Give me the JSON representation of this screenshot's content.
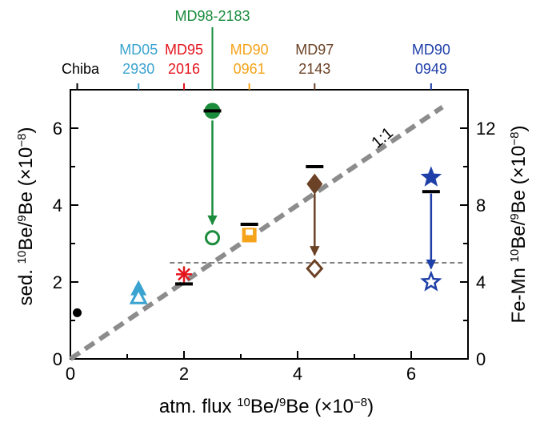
{
  "chart_data": {
    "type": "scatter",
    "x_axis": {
      "range": [
        0,
        7
      ],
      "ticks": [
        0,
        2,
        4,
        6
      ],
      "tick_labels": [
        "0",
        "2",
        "4",
        "6"
      ],
      "title": {
        "prefix": "atm. flux ",
        "ratio_num": "10",
        "ratio_num_el": "Be/",
        "ratio_den": "9",
        "ratio_den_el": "Be",
        "unit_open": " (×10",
        "unit_exp": "−8",
        "unit_close": ")"
      }
    },
    "y_axis_left": {
      "range": [
        0,
        7
      ],
      "ticks": [
        0,
        2,
        4,
        6
      ],
      "tick_labels": [
        "0",
        "2",
        "4",
        "6"
      ],
      "title": {
        "prefix": "sed. ",
        "ratio_num": "10",
        "ratio_num_el": "Be/",
        "ratio_den": "9",
        "ratio_den_el": "Be",
        "unit_open": " (×10",
        "unit_exp": "−8",
        "unit_close": ")"
      }
    },
    "y_axis_right": {
      "range": [
        0,
        14
      ],
      "ticks": [
        0,
        4,
        8,
        12
      ],
      "tick_labels": [
        "0",
        "4",
        "8",
        "12"
      ],
      "title": {
        "prefix": "Fe-Mn ",
        "ratio_num": "10",
        "ratio_num_el": "Be/",
        "ratio_den": "9",
        "ratio_den_el": "Be",
        "unit_open": " (×10",
        "unit_exp": "−8",
        "unit_close": ")"
      }
    },
    "one_to_one_label": "1:1",
    "reference_line_y": 2.5,
    "sites": [
      {
        "name": "Chiba",
        "line1": "Chiba",
        "line2": "",
        "x": 0.12,
        "color": "#000000"
      },
      {
        "name": "MD05 2930",
        "line1": "MD05",
        "line2": "2930",
        "x": 1.2,
        "color": "#3aa3d0"
      },
      {
        "name": "MD95 2016",
        "line1": "MD95",
        "line2": "2016",
        "x": 2.0,
        "color": "#e3141c"
      },
      {
        "name": "MD98-2183",
        "line1": "MD98-2183",
        "line2": "",
        "x": 2.5,
        "color": "#1a8c3c"
      },
      {
        "name": "MD90 0961",
        "line1": "MD90",
        "line2": "0961",
        "x": 3.15,
        "color": "#f5a31a"
      },
      {
        "name": "MD97 2143",
        "line1": "MD97",
        "line2": "2143",
        "x": 4.3,
        "color": "#6b4226"
      },
      {
        "name": "MD90 0949",
        "line1": "MD90",
        "line2": "0949",
        "x": 6.35,
        "color": "#1f3fa8"
      }
    ],
    "points": [
      {
        "site": "Chiba",
        "x": 0.12,
        "y": 1.2,
        "marker": "dot",
        "color": "#000000"
      },
      {
        "site": "MD05 2930",
        "x": 1.2,
        "y": 1.8,
        "marker": "triangle-filled",
        "color": "#3aa3d0"
      },
      {
        "site": "MD05 2930",
        "x": 1.2,
        "y": 1.62,
        "marker": "triangle-open",
        "color": "#3aa3d0"
      },
      {
        "site": "MD95 2016",
        "x": 2.0,
        "y": 2.2,
        "marker": "asterisk",
        "color": "#e3141c"
      },
      {
        "site": "MD98-2183",
        "x": 2.5,
        "y": 6.45,
        "marker": "circle-half",
        "color": "#1a8c3c"
      },
      {
        "site": "MD98-2183",
        "x": 2.5,
        "y": 3.15,
        "marker": "circle-open",
        "color": "#1a8c3c"
      },
      {
        "site": "MD90 0961",
        "x": 3.15,
        "y": 3.22,
        "marker": "square-half",
        "color": "#f5a31a"
      },
      {
        "site": "MD97 2143",
        "x": 4.3,
        "y": 4.55,
        "marker": "diamond-filled",
        "color": "#6b4226"
      },
      {
        "site": "MD97 2143",
        "x": 4.3,
        "y": 2.35,
        "marker": "diamond-open",
        "color": "#6b4226"
      },
      {
        "site": "MD90 0949",
        "x": 6.35,
        "y": 4.72,
        "marker": "star-filled",
        "color": "#1f3fa8"
      },
      {
        "site": "MD90 0949",
        "x": 6.35,
        "y": 2.0,
        "marker": "star-open",
        "color": "#1f3fa8"
      }
    ],
    "black_bars": [
      {
        "x": 2.0,
        "y": 1.95
      },
      {
        "x": 2.5,
        "y": 6.45
      },
      {
        "x": 3.15,
        "y": 3.5
      },
      {
        "x": 4.3,
        "y": 5.0
      },
      {
        "x": 6.35,
        "y": 4.35
      }
    ],
    "arrows": [
      {
        "x": 2.5,
        "from": 6.2,
        "to": 3.5,
        "color": "#1a8c3c"
      },
      {
        "x": 4.3,
        "from": 4.3,
        "to": 2.7,
        "color": "#6b4226"
      },
      {
        "x": 6.35,
        "from": 4.3,
        "to": 2.35,
        "color": "#1f3fa8"
      }
    ]
  }
}
